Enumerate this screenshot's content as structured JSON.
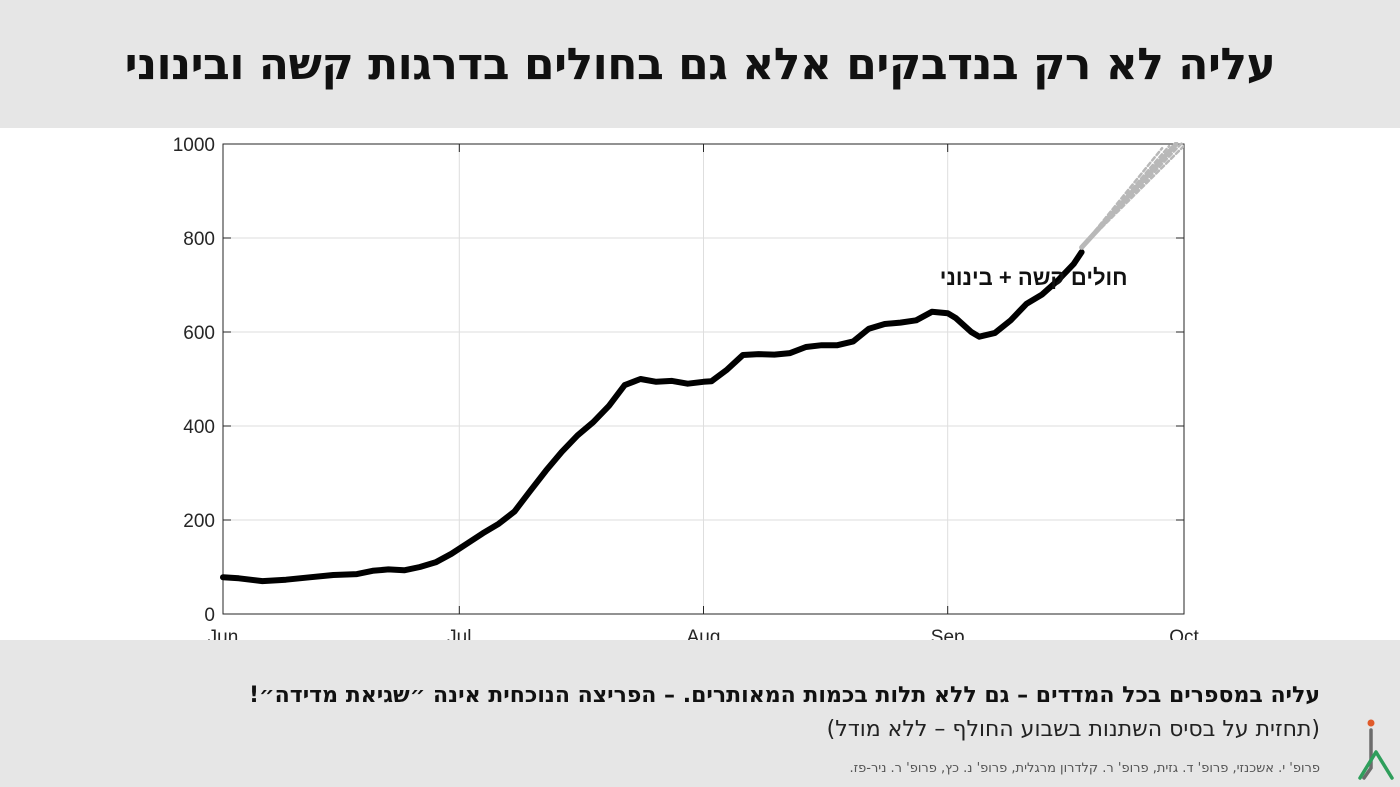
{
  "title": "עליה לא רק בנדבקים אלא גם בחולים בדרגות קשה ובינוני",
  "footer": {
    "headline": "עליה במספרים בכל המדדים – גם ללא תלות בכמות המאותרים. – הפריצה הנוכחית אינה ״שגיאת מדידה״!",
    "subline": "(תחזית על בסיס השתנות בשבוע החולף – ללא מודל)",
    "credits": "פרופ' י. אשכנזי, פרופ' ד. גזית, פרופ' ר. קלדרון מרגלית, פרופ' נ. כץ, פרופ' ר. ניר-פז."
  },
  "logo": {
    "name": "institute-logo",
    "colors": [
      "#e05a2a",
      "#2e9e5b",
      "#6c6c6c"
    ]
  },
  "chart_data": {
    "type": "line",
    "title": "",
    "xlabel": "",
    "ylabel": "",
    "xlim": [
      "2020-06-01",
      "2020-10-01"
    ],
    "ylim": [
      0,
      1000
    ],
    "x_ticks": [
      {
        "date": "2020-06-01",
        "label": "Jun"
      },
      {
        "date": "2020-07-01",
        "label": "Jul"
      },
      {
        "date": "2020-08-01",
        "label": "Aug"
      },
      {
        "date": "2020-09-01",
        "label": "Sep"
      },
      {
        "date": "2020-10-01",
        "label": "Oct"
      }
    ],
    "y_ticks": [
      0,
      200,
      400,
      600,
      800,
      1000
    ],
    "grid": true,
    "annotation": "חולים קשה + בינוני",
    "series": [
      {
        "color": "#000000",
        "style": "solid",
        "x": [
          "2020-06-01",
          "2020-06-03",
          "2020-06-06",
          "2020-06-09",
          "2020-06-12",
          "2020-06-15",
          "2020-06-18",
          "2020-06-20",
          "2020-06-22",
          "2020-06-24",
          "2020-06-26",
          "2020-06-28",
          "2020-06-30",
          "2020-07-02",
          "2020-07-04",
          "2020-07-06",
          "2020-07-08",
          "2020-07-10",
          "2020-07-12",
          "2020-07-14",
          "2020-07-16",
          "2020-07-18",
          "2020-07-20",
          "2020-07-22",
          "2020-07-24",
          "2020-07-26",
          "2020-07-28",
          "2020-07-30",
          "2020-08-01",
          "2020-08-02",
          "2020-08-04",
          "2020-08-06",
          "2020-08-08",
          "2020-08-10",
          "2020-08-12",
          "2020-08-14",
          "2020-08-16",
          "2020-08-18",
          "2020-08-20",
          "2020-08-22",
          "2020-08-24",
          "2020-08-26",
          "2020-08-28",
          "2020-08-30",
          "2020-09-01",
          "2020-09-02",
          "2020-09-04",
          "2020-09-05",
          "2020-09-07",
          "2020-09-09",
          "2020-09-11",
          "2020-09-13",
          "2020-09-15",
          "2020-09-17",
          "2020-09-18"
        ],
        "y": [
          78,
          76,
          70,
          73,
          78,
          83,
          85,
          92,
          95,
          93,
          100,
          110,
          128,
          150,
          172,
          192,
          218,
          262,
          305,
          345,
          380,
          408,
          443,
          487,
          500,
          494,
          496,
          490,
          494,
          495,
          520,
          551,
          553,
          552,
          555,
          568,
          572,
          572,
          580,
          607,
          617,
          620,
          625,
          643,
          640,
          630,
          600,
          590,
          598,
          625,
          660,
          680,
          710,
          745,
          770
        ]
      },
      {
        "name": "",
        "color": "#b8b8b8",
        "style": "forecast",
        "x": [
          "2020-09-18",
          "2020-09-30"
        ],
        "y": [
          780,
          1000
        ]
      }
    ]
  }
}
